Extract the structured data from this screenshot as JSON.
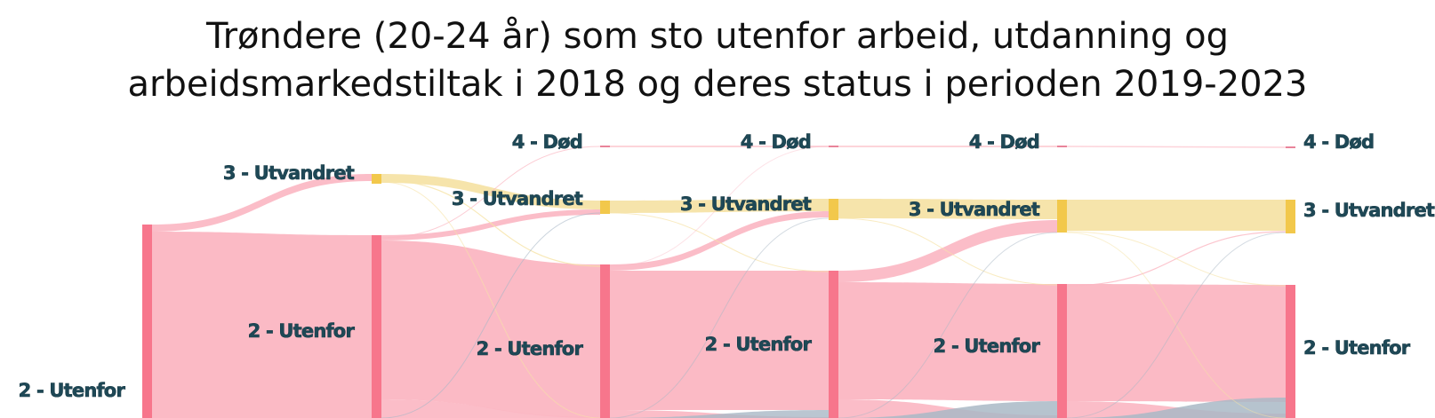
{
  "chart_data": {
    "type": "sankey",
    "title_lines": [
      "Trøndere (20-24 år) som sto utenfor arbeid, utdanning og",
      "arbeidsmarkedstiltak i 2018 og deres status i perioden 2019-2023"
    ],
    "colors": {
      "utenfor_node": "#f7768c",
      "utenfor_link": "#fbb6c2",
      "utvandret_node": "#f2c84b",
      "utvandret_link": "#f6e3a6",
      "dod_node": "#e9849a",
      "other_link": "#a9b8c6"
    },
    "columns": [
      {
        "nodes": [
          {
            "label": "2 - Utenfor"
          }
        ]
      },
      {
        "nodes": [
          {
            "label": "3 - Utvandret"
          },
          {
            "label": "2 - Utenfor"
          }
        ]
      },
      {
        "nodes": [
          {
            "label": "4 - Død"
          },
          {
            "label": "3 - Utvandret"
          },
          {
            "label": "2 - Utenfor"
          }
        ]
      },
      {
        "nodes": [
          {
            "label": "4 - Død"
          },
          {
            "label": "3 - Utvandret"
          },
          {
            "label": "2 - Utenfor"
          }
        ]
      },
      {
        "nodes": [
          {
            "label": "4 - Død"
          },
          {
            "label": "3 - Utvandret"
          },
          {
            "label": "2 - Utenfor"
          }
        ]
      },
      {
        "nodes": [
          {
            "label": "4 - Død"
          },
          {
            "label": "3 - Utvandret"
          },
          {
            "label": "2 - Utenfor"
          }
        ]
      }
    ]
  }
}
